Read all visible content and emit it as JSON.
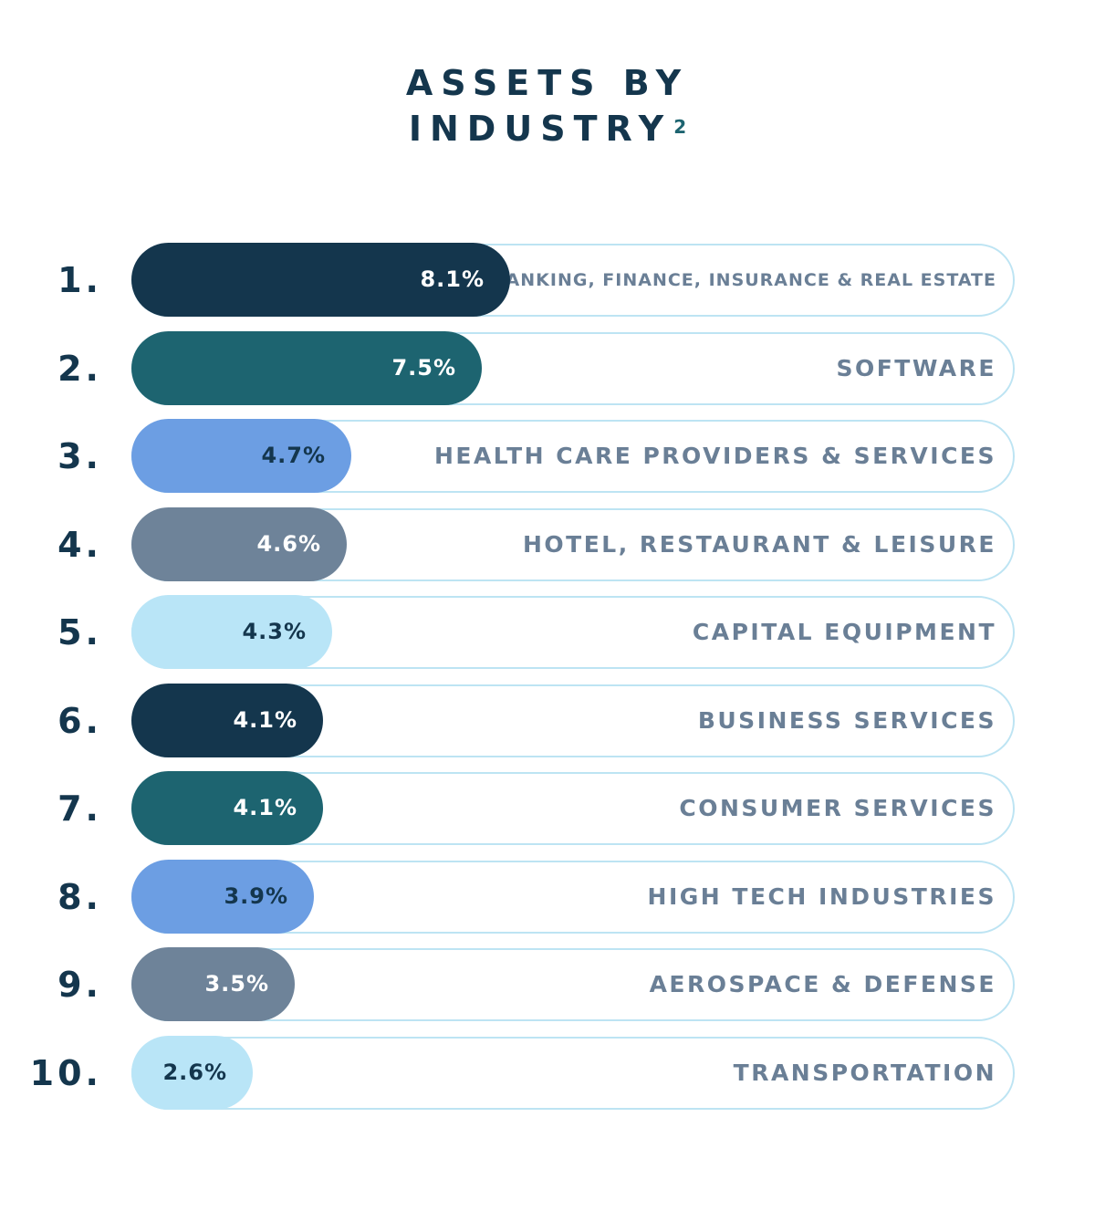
{
  "chart_data": {
    "type": "bar",
    "orientation": "horizontal",
    "title_line1": "ASSETS BY",
    "title_line2": "INDUSTRY",
    "title_footnote": "2",
    "value_unit": "%",
    "xlim": [
      0,
      18.9
    ],
    "ranks": [
      "1.",
      "2.",
      "3.",
      "4.",
      "5.",
      "6.",
      "7.",
      "8.",
      "9.",
      "10."
    ],
    "categories": [
      "BANKING, FINANCE, INSURANCE & REAL ESTATE",
      "SOFTWARE",
      "HEALTH CARE PROVIDERS & SERVICES",
      "HOTEL, RESTAURANT & LEISURE",
      "CAPITAL EQUIPMENT",
      "BUSINESS SERVICES",
      "CONSUMER SERVICES",
      "HIGH TECH INDUSTRIES",
      "AEROSPACE & DEFENSE",
      "TRANSPORTATION"
    ],
    "values": [
      8.1,
      7.5,
      4.7,
      4.6,
      4.3,
      4.1,
      4.1,
      3.9,
      3.5,
      2.6
    ],
    "value_labels": [
      "8.1%",
      "7.5%",
      "4.7%",
      "4.6%",
      "4.3%",
      "4.1%",
      "4.1%",
      "3.9%",
      "3.5%",
      "2.6%"
    ],
    "bar_colors": [
      "#14364d",
      "#1d6470",
      "#6c9ee3",
      "#6e8399",
      "#b9e5f7",
      "#14364d",
      "#1d6470",
      "#6c9ee3",
      "#6e8399",
      "#b9e5f7"
    ],
    "label_colors": [
      "#ffffff",
      "#ffffff",
      "#14364d",
      "#ffffff",
      "#14364d",
      "#ffffff",
      "#ffffff",
      "#14364d",
      "#ffffff",
      "#14364d"
    ],
    "track_border_color": "#bde4f3",
    "category_color": "#6a7f96",
    "rank_color": "#14364d"
  }
}
